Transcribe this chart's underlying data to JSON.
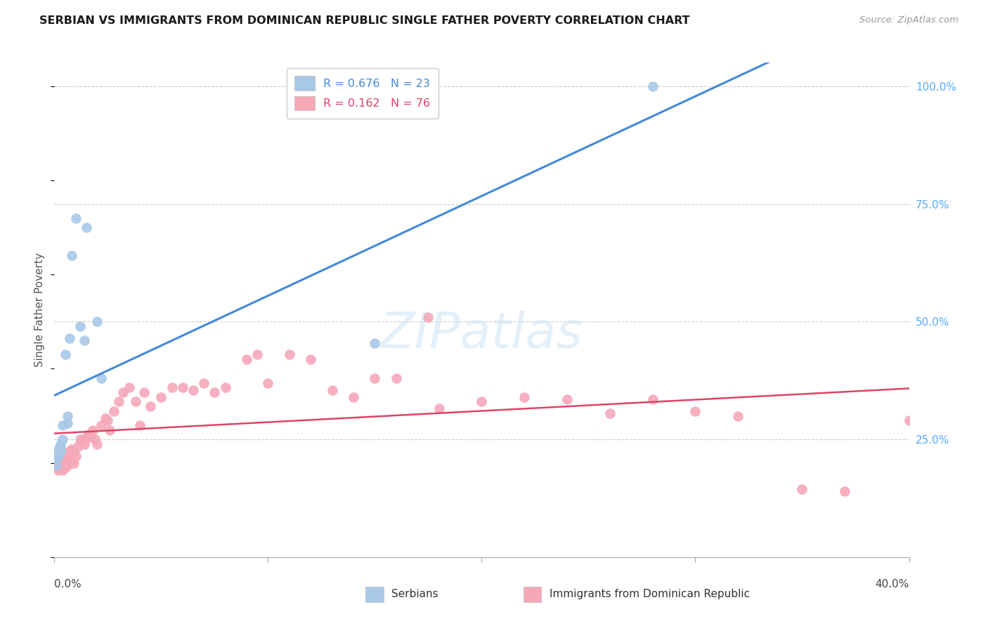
{
  "title": "SERBIAN VS IMMIGRANTS FROM DOMINICAN REPUBLIC SINGLE FATHER POVERTY CORRELATION CHART",
  "source": "Source: ZipAtlas.com",
  "ylabel": "Single Father Poverty",
  "legend_serbian": "R = 0.676   N = 23",
  "legend_dr": "R = 0.162   N = 76",
  "legend_label_serbian": "Serbians",
  "legend_label_dr": "Immigrants from Dominican Republic",
  "serbian_color": "#a8c8e8",
  "dr_color": "#f5a8b8",
  "trend_serbian_color": "#4488dd",
  "trend_dr_color": "#dd4466",
  "watermark": "ZIPatlas",
  "xlim": [
    0.0,
    0.4
  ],
  "ylim": [
    0.0,
    1.05
  ],
  "right_yticks": [
    1.0,
    0.75,
    0.5,
    0.25
  ],
  "right_yticklabels": [
    "100.0%",
    "75.0%",
    "50.0%",
    "25.0%"
  ],
  "serbian_x": [
    0.001,
    0.001,
    0.002,
    0.002,
    0.002,
    0.003,
    0.003,
    0.003,
    0.004,
    0.004,
    0.005,
    0.006,
    0.006,
    0.007,
    0.008,
    0.01,
    0.012,
    0.014,
    0.015,
    0.02,
    0.022,
    0.15,
    0.28
  ],
  "serbian_y": [
    0.195,
    0.21,
    0.215,
    0.22,
    0.23,
    0.225,
    0.235,
    0.24,
    0.25,
    0.28,
    0.43,
    0.285,
    0.3,
    0.465,
    0.64,
    0.72,
    0.49,
    0.46,
    0.7,
    0.5,
    0.38,
    0.455,
    1.0
  ],
  "dr_x": [
    0.001,
    0.001,
    0.001,
    0.002,
    0.002,
    0.002,
    0.002,
    0.003,
    0.003,
    0.003,
    0.003,
    0.004,
    0.004,
    0.004,
    0.005,
    0.005,
    0.005,
    0.006,
    0.006,
    0.007,
    0.007,
    0.008,
    0.008,
    0.009,
    0.009,
    0.01,
    0.011,
    0.012,
    0.013,
    0.014,
    0.015,
    0.016,
    0.017,
    0.018,
    0.019,
    0.02,
    0.022,
    0.024,
    0.025,
    0.026,
    0.028,
    0.03,
    0.032,
    0.035,
    0.038,
    0.04,
    0.042,
    0.045,
    0.05,
    0.055,
    0.06,
    0.065,
    0.07,
    0.075,
    0.08,
    0.09,
    0.095,
    0.1,
    0.11,
    0.12,
    0.13,
    0.14,
    0.15,
    0.16,
    0.175,
    0.18,
    0.2,
    0.22,
    0.24,
    0.26,
    0.28,
    0.3,
    0.32,
    0.35,
    0.37,
    0.4
  ],
  "dr_y": [
    0.19,
    0.2,
    0.215,
    0.185,
    0.195,
    0.205,
    0.215,
    0.19,
    0.2,
    0.21,
    0.22,
    0.185,
    0.2,
    0.21,
    0.19,
    0.2,
    0.215,
    0.195,
    0.22,
    0.2,
    0.225,
    0.205,
    0.23,
    0.2,
    0.225,
    0.215,
    0.235,
    0.25,
    0.245,
    0.24,
    0.255,
    0.26,
    0.255,
    0.27,
    0.25,
    0.24,
    0.28,
    0.295,
    0.29,
    0.27,
    0.31,
    0.33,
    0.35,
    0.36,
    0.33,
    0.28,
    0.35,
    0.32,
    0.34,
    0.36,
    0.36,
    0.355,
    0.37,
    0.35,
    0.36,
    0.42,
    0.43,
    0.37,
    0.43,
    0.42,
    0.355,
    0.34,
    0.38,
    0.38,
    0.51,
    0.315,
    0.33,
    0.34,
    0.335,
    0.305,
    0.335,
    0.31,
    0.3,
    0.145,
    0.14,
    0.29
  ]
}
